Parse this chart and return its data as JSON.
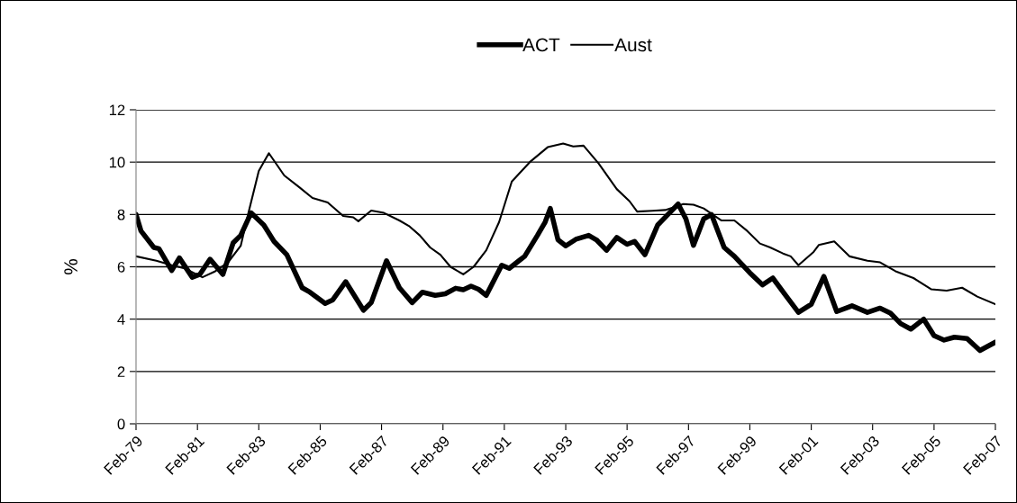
{
  "chart_data": {
    "type": "line",
    "ylabel": "%",
    "legend": "top",
    "grid": "y",
    "xlim": [
      "1979-02",
      "2007-02"
    ],
    "ylim": [
      0,
      12
    ],
    "yticks": [
      0,
      2,
      4,
      6,
      8,
      10,
      12
    ],
    "xticks": [
      {
        "value": "1979-02",
        "label": "Feb-79"
      },
      {
        "value": "1981-02",
        "label": "Feb-81"
      },
      {
        "value": "1983-02",
        "label": "Feb-83"
      },
      {
        "value": "1985-02",
        "label": "Feb-85"
      },
      {
        "value": "1987-02",
        "label": "Feb-87"
      },
      {
        "value": "1989-02",
        "label": "Feb-89"
      },
      {
        "value": "1991-02",
        "label": "Feb-91"
      },
      {
        "value": "1993-02",
        "label": "Feb-93"
      },
      {
        "value": "1995-02",
        "label": "Feb-95"
      },
      {
        "value": "1997-02",
        "label": "Feb-97"
      },
      {
        "value": "1999-02",
        "label": "Feb-99"
      },
      {
        "value": "2001-02",
        "label": "Feb-01"
      },
      {
        "value": "2003-02",
        "label": "Feb-03"
      },
      {
        "value": "2005-02",
        "label": "Feb-05"
      },
      {
        "value": "2007-02",
        "label": "Feb-07"
      }
    ],
    "series": [
      {
        "name": "ACT",
        "color": "#000000",
        "x": [
          "1979-02",
          "1979-04",
          "1979-09",
          "1979-11",
          "1980-04",
          "1980-07",
          "1980-12",
          "1981-03",
          "1981-07",
          "1981-12",
          "1982-04",
          "1982-07",
          "1982-11",
          "1983-04",
          "1983-08",
          "1984-01",
          "1984-07",
          "1984-10",
          "1985-04",
          "1985-07",
          "1985-12",
          "1986-07",
          "1986-10",
          "1987-04",
          "1987-09",
          "1988-02",
          "1988-06",
          "1988-11",
          "1989-03",
          "1989-07",
          "1989-10",
          "1990-01",
          "1990-04",
          "1990-07",
          "1991-01",
          "1991-04",
          "1991-08",
          "1991-10",
          "1992-03",
          "1992-06",
          "1992-08",
          "1992-11",
          "1993-02",
          "1993-06",
          "1993-11",
          "1994-02",
          "1994-06",
          "1994-10",
          "1995-02",
          "1995-05",
          "1995-09",
          "1996-02",
          "1996-06",
          "1996-10",
          "1997-01",
          "1997-04",
          "1997-08",
          "1997-11",
          "1998-04",
          "1998-08",
          "1999-02",
          "1999-07",
          "1999-11",
          "2000-04",
          "2000-09",
          "2001-02",
          "2001-07",
          "2001-12",
          "2002-06",
          "2002-12",
          "2003-05",
          "2003-09",
          "2004-01",
          "2004-05",
          "2004-10",
          "2005-02",
          "2005-06",
          "2005-10",
          "2006-03",
          "2006-08",
          "2007-02"
        ],
        "values": [
          8.0,
          7.37,
          6.74,
          6.69,
          5.86,
          6.34,
          5.6,
          5.71,
          6.29,
          5.71,
          6.91,
          7.2,
          8.06,
          7.6,
          6.97,
          6.46,
          5.2,
          5.03,
          4.6,
          4.74,
          5.43,
          4.34,
          4.63,
          6.23,
          5.2,
          4.63,
          5.03,
          4.91,
          4.97,
          5.18,
          5.12,
          5.26,
          5.14,
          4.91,
          6.06,
          5.94,
          6.25,
          6.4,
          7.2,
          7.71,
          8.23,
          7.03,
          6.8,
          7.05,
          7.2,
          7.03,
          6.63,
          7.12,
          6.86,
          6.97,
          6.46,
          7.6,
          8.0,
          8.4,
          7.83,
          6.82,
          7.83,
          8.0,
          6.74,
          6.4,
          5.77,
          5.31,
          5.57,
          4.91,
          4.26,
          4.57,
          5.63,
          4.29,
          4.51,
          4.26,
          4.42,
          4.23,
          3.83,
          3.62,
          4.0,
          3.37,
          3.2,
          3.31,
          3.26,
          2.8,
          3.12
        ]
      },
      {
        "name": "Aust",
        "color": "#000000",
        "x": [
          "1979-02",
          "1979-10",
          "1980-04",
          "1980-09",
          "1981-04",
          "1981-09",
          "1982-02",
          "1982-07",
          "1982-10",
          "1983-02",
          "1983-06",
          "1983-12",
          "1984-06",
          "1984-11",
          "1985-05",
          "1985-11",
          "1986-03",
          "1986-05",
          "1986-10",
          "1987-03",
          "1987-09",
          "1988-01",
          "1988-05",
          "1988-09",
          "1989-01",
          "1989-05",
          "1989-10",
          "1990-02",
          "1990-07",
          "1990-12",
          "1991-05",
          "1991-12",
          "1992-07",
          "1993-01",
          "1993-05",
          "1993-09",
          "1994-03",
          "1994-10",
          "1995-03",
          "1995-06",
          "1995-12",
          "1996-05",
          "1996-12",
          "1997-04",
          "1997-08",
          "1998-03",
          "1998-08",
          "1999-01",
          "1999-06",
          "1999-10",
          "2000-03",
          "2000-06",
          "2000-09",
          "2001-03",
          "2001-05",
          "2001-11",
          "2002-05",
          "2002-12",
          "2003-05",
          "2003-11",
          "2004-06",
          "2005-01",
          "2005-07",
          "2006-01",
          "2006-07",
          "2007-02"
        ],
        "values": [
          6.4,
          6.23,
          6.06,
          5.94,
          5.6,
          5.83,
          6.17,
          6.8,
          8.06,
          9.66,
          10.34,
          9.49,
          9.03,
          8.63,
          8.46,
          7.94,
          7.89,
          7.74,
          8.15,
          8.06,
          7.77,
          7.54,
          7.2,
          6.74,
          6.46,
          6.0,
          5.71,
          6.0,
          6.63,
          7.71,
          9.26,
          10.0,
          10.57,
          10.71,
          10.6,
          10.63,
          9.94,
          8.97,
          8.51,
          8.11,
          8.14,
          8.17,
          8.4,
          8.37,
          8.23,
          7.77,
          7.77,
          7.37,
          6.89,
          6.74,
          6.51,
          6.4,
          6.06,
          6.57,
          6.83,
          6.97,
          6.4,
          6.23,
          6.17,
          5.83,
          5.57,
          5.14,
          5.09,
          5.2,
          4.86,
          4.57
        ]
      }
    ]
  }
}
